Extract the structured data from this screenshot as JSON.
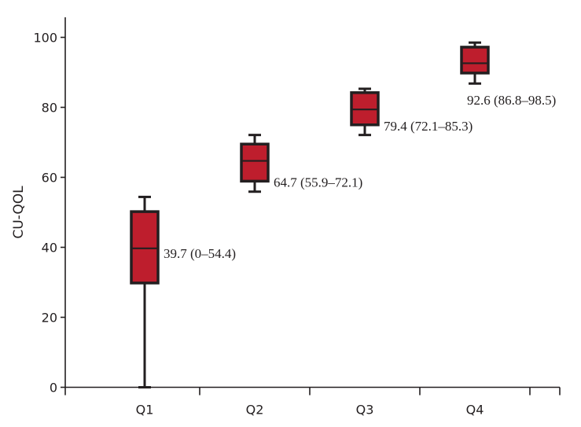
{
  "chart_data": {
    "type": "box",
    "title": "",
    "xlabel": "",
    "ylabel": "CU-QOL",
    "ylim": [
      0,
      100
    ],
    "yticks": [
      0,
      20,
      40,
      60,
      80,
      100
    ],
    "grid": false,
    "box_color": "#be1e2d",
    "categories": [
      "Q1",
      "Q2",
      "Q3",
      "Q4"
    ],
    "boxes": [
      {
        "category": "Q1",
        "min": 0,
        "q1": 29.8,
        "median": 39.7,
        "q3": 50.2,
        "max": 54.4,
        "label": "39.7 (0–54.4)"
      },
      {
        "category": "Q2",
        "min": 55.9,
        "q1": 58.9,
        "median": 64.7,
        "q3": 69.5,
        "max": 72.1,
        "label": "64.7 (55.9–72.1)"
      },
      {
        "category": "Q3",
        "min": 72.1,
        "q1": 75.0,
        "median": 79.4,
        "q3": 84.2,
        "max": 85.3,
        "label": "79.4 (72.1–85.3)"
      },
      {
        "category": "Q4",
        "min": 86.8,
        "q1": 89.8,
        "median": 92.6,
        "q3": 97.2,
        "max": 98.5,
        "label": "92.6 (86.8–98.5)"
      }
    ]
  }
}
